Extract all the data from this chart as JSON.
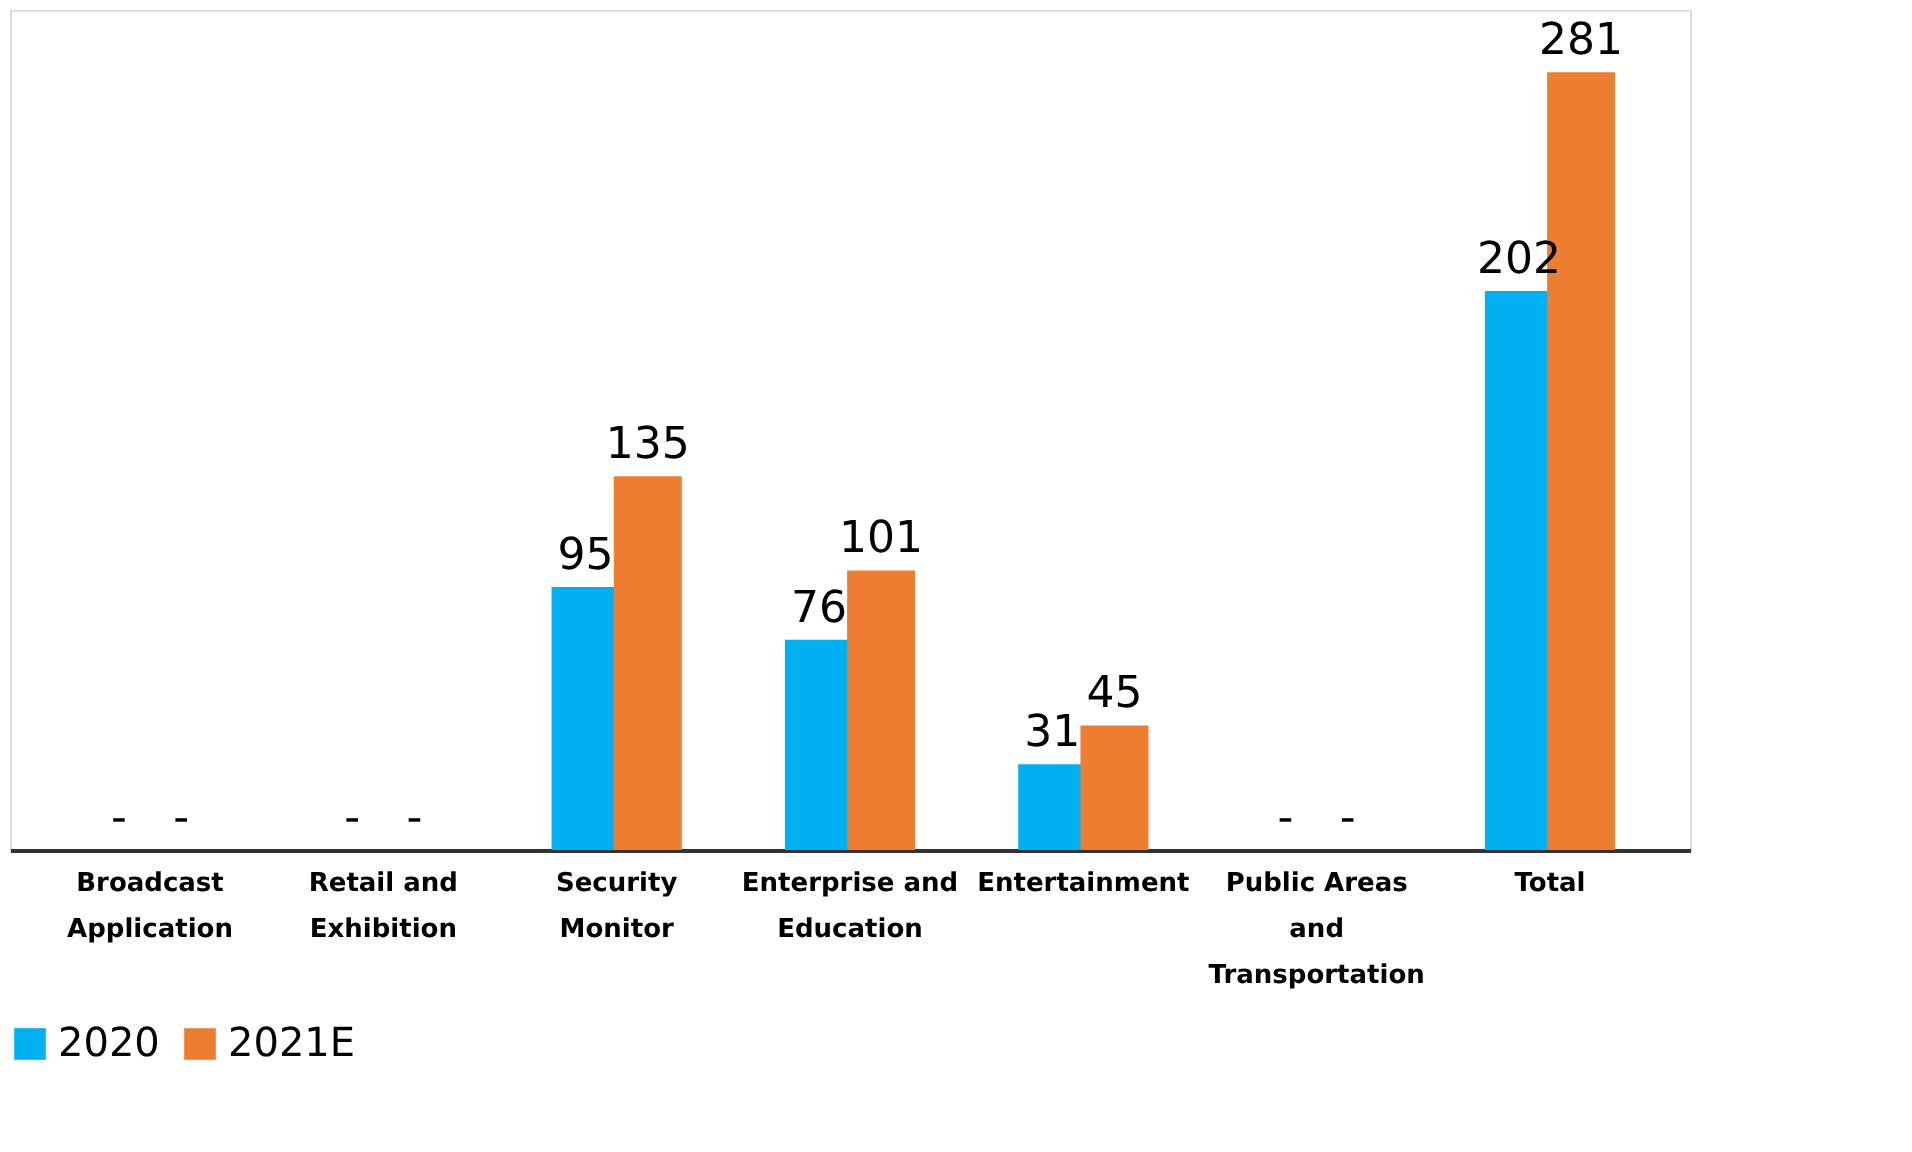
{
  "chart_data": {
    "type": "bar",
    "categories": [
      "Broadcast Application",
      "Retail and Exhibition",
      "Security Monitor",
      "Enterprise and Education",
      "Entertainment",
      "Public Areas and Transportation",
      "Total"
    ],
    "series": [
      {
        "name": "2020",
        "color": "#00b0f0",
        "values": [
          null,
          null,
          95,
          76,
          31,
          null,
          202
        ],
        "value_labels": [
          "-",
          "-",
          "95",
          "76",
          "31",
          "-",
          "202"
        ]
      },
      {
        "name": "2021E",
        "color": "#ed7d31",
        "values": [
          null,
          null,
          135,
          101,
          45,
          null,
          281
        ],
        "value_labels": [
          "-",
          "-",
          "135",
          "101",
          "45",
          "-",
          "281"
        ]
      }
    ],
    "legend": "bottom",
    "grid": false
  }
}
